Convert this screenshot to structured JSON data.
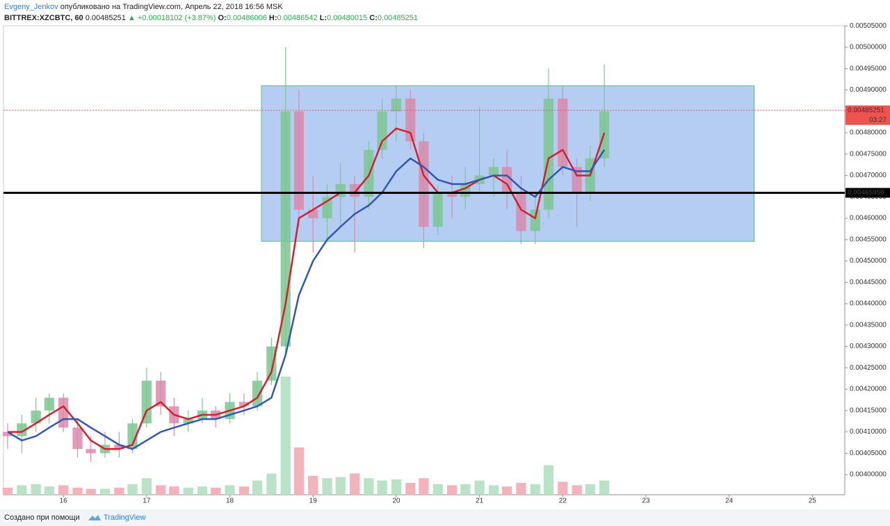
{
  "header": {
    "user": "Evgeny_Jenkov",
    "published": "опубликовано на TradingView.com, Апрель 22, 2018 16:56 MSK",
    "symbol": "BITTREX:XZCBTC, 60",
    "last": "0.00485251",
    "change": "▲ +0.00018102 (+3.87%)",
    "o_label": "O:",
    "o": "0.00486006",
    "h_label": "H:",
    "h": "0.00486542",
    "l_label": "L:",
    "l": "0.00480015",
    "c_label": "C:",
    "c": "0.00485251"
  },
  "footer": {
    "made_with": "Создано при помощи",
    "brand": "TradingView"
  },
  "chart_data": {
    "type": "candlestick",
    "x": [
      15.33,
      15.5,
      15.67,
      15.83,
      16.0,
      16.17,
      16.33,
      16.5,
      16.67,
      16.83,
      17.0,
      17.17,
      17.33,
      17.5,
      17.67,
      17.83,
      18.0,
      18.17,
      18.33,
      18.5,
      18.67,
      18.83,
      19.0,
      19.17,
      19.33,
      19.5,
      19.67,
      19.83,
      20.0,
      20.17,
      20.33,
      20.5,
      20.67,
      20.83,
      21.0,
      21.17,
      21.33,
      21.5,
      21.67,
      21.83,
      22.0,
      22.17,
      22.33,
      22.5
    ],
    "open": [
      0.0041,
      0.00409,
      0.00412,
      0.00415,
      0.00418,
      0.00411,
      0.00406,
      0.00405,
      0.00407,
      0.00406,
      0.00412,
      0.00422,
      0.00416,
      0.00412,
      0.00413,
      0.00415,
      0.00413,
      0.00417,
      0.00416,
      0.00422,
      0.0043,
      0.00485,
      0.00462,
      0.0046,
      0.00465,
      0.00468,
      0.00465,
      0.00476,
      0.00485,
      0.00488,
      0.00478,
      0.00458,
      0.00466,
      0.00465,
      0.00468,
      0.0047,
      0.00472,
      0.00466,
      0.00457,
      0.00462,
      0.00488,
      0.00472,
      0.00466,
      0.00474
    ],
    "high": [
      0.00412,
      0.00414,
      0.00418,
      0.00419,
      0.00419,
      0.00413,
      0.00409,
      0.0041,
      0.0041,
      0.00413,
      0.00425,
      0.00424,
      0.00418,
      0.00415,
      0.00418,
      0.00416,
      0.00419,
      0.00419,
      0.00424,
      0.00432,
      0.005,
      0.0049,
      0.0047,
      0.00468,
      0.00473,
      0.0047,
      0.00478,
      0.00488,
      0.00491,
      0.0049,
      0.0048,
      0.00468,
      0.0047,
      0.00472,
      0.00486,
      0.00474,
      0.00476,
      0.0047,
      0.00466,
      0.00495,
      0.00491,
      0.00474,
      0.00477,
      0.00496
    ],
    "low": [
      0.00406,
      0.00405,
      0.0041,
      0.00412,
      0.0041,
      0.00404,
      0.00403,
      0.00404,
      0.00404,
      0.00405,
      0.00411,
      0.00414,
      0.00409,
      0.0041,
      0.00412,
      0.00411,
      0.00412,
      0.00414,
      0.00415,
      0.00421,
      0.00428,
      0.00458,
      0.00452,
      0.00455,
      0.00458,
      0.00452,
      0.00462,
      0.00474,
      0.00478,
      0.00476,
      0.00453,
      0.00456,
      0.0046,
      0.00462,
      0.00466,
      0.00465,
      0.00462,
      0.00454,
      0.00454,
      0.0046,
      0.0047,
      0.00458,
      0.00464,
      0.00472
    ],
    "close": [
      0.00409,
      0.00412,
      0.00415,
      0.00418,
      0.00411,
      0.00406,
      0.00405,
      0.00407,
      0.00406,
      0.00412,
      0.00422,
      0.00416,
      0.00412,
      0.00413,
      0.00415,
      0.00413,
      0.00417,
      0.00416,
      0.00422,
      0.0043,
      0.00485,
      0.00462,
      0.0046,
      0.00465,
      0.00468,
      0.00465,
      0.00476,
      0.00485,
      0.00488,
      0.00478,
      0.00458,
      0.00466,
      0.00465,
      0.00468,
      0.0047,
      0.00472,
      0.00466,
      0.00457,
      0.00462,
      0.00488,
      0.00472,
      0.00466,
      0.00474,
      0.00485
    ],
    "volume": [
      6,
      8,
      9,
      7,
      8,
      6,
      5,
      5,
      6,
      9,
      14,
      8,
      7,
      6,
      7,
      6,
      8,
      7,
      12,
      18,
      100,
      40,
      16,
      14,
      15,
      18,
      14,
      12,
      13,
      10,
      14,
      9,
      8,
      9,
      12,
      8,
      7,
      10,
      9,
      25,
      11,
      8,
      9,
      12
    ],
    "up_color": "#7cc592",
    "down_color": "#d98aaa",
    "volume_up_color": "#b9e2c6",
    "volume_down_color": "#f3b3bb",
    "lines": [
      {
        "color": "#d2202e",
        "values": [
          0.0041,
          0.0041,
          0.00412,
          0.00414,
          0.00416,
          0.00412,
          0.00408,
          0.00406,
          0.00406,
          0.00407,
          0.00415,
          0.00417,
          0.00414,
          0.00413,
          0.00414,
          0.00414,
          0.00415,
          0.00416,
          0.00418,
          0.00424,
          0.0044,
          0.0046,
          0.00462,
          0.00464,
          0.00466,
          0.00466,
          0.0047,
          0.00478,
          0.00481,
          0.0048,
          0.0047,
          0.00466,
          0.00466,
          0.00467,
          0.00469,
          0.0047,
          0.00468,
          0.00462,
          0.0046,
          0.00474,
          0.00476,
          0.0047,
          0.0047,
          0.0048
        ]
      },
      {
        "color": "#3456ad",
        "values": [
          0.0041,
          0.00408,
          0.00409,
          0.00411,
          0.00413,
          0.00413,
          0.00411,
          0.00409,
          0.00407,
          0.00406,
          0.00408,
          0.0041,
          0.00411,
          0.00412,
          0.00413,
          0.00413,
          0.00414,
          0.00415,
          0.00416,
          0.00418,
          0.00428,
          0.00442,
          0.0045,
          0.00455,
          0.00458,
          0.00461,
          0.00463,
          0.00466,
          0.00471,
          0.00474,
          0.00472,
          0.00469,
          0.00468,
          0.00468,
          0.00469,
          0.0047,
          0.0047,
          0.00467,
          0.00465,
          0.00469,
          0.00472,
          0.00471,
          0.00471,
          0.00476
        ]
      }
    ],
    "rectangle": {
      "x": [
        18.38,
        24.3
      ],
      "y": [
        0.004546,
        0.00491
      ],
      "color": "#adc8f2"
    },
    "hline": {
      "value": 0.0046595,
      "label": "0.00465950",
      "color": "#000000"
    },
    "last_price": {
      "value": 0.00485251,
      "label": "0.00485251",
      "countdown": "03:27",
      "color": "#ef5350"
    },
    "xlim": [
      15.28,
      25.39
    ],
    "ylim": [
      0.003953,
      0.0050505
    ],
    "xticks": [
      16,
      17,
      18,
      19,
      20,
      21,
      22,
      23,
      24,
      25
    ],
    "yticks": [
      {
        "value": 0.004,
        "label": "0.00400000"
      },
      {
        "value": 0.00405,
        "label": "0.00405000"
      },
      {
        "value": 0.0041,
        "label": "0.00410000"
      },
      {
        "value": 0.00415,
        "label": "0.00415000"
      },
      {
        "value": 0.0042,
        "label": "0.00420000"
      },
      {
        "value": 0.00425,
        "label": "0.00425000"
      },
      {
        "value": 0.0043,
        "label": "0.00430000"
      },
      {
        "value": 0.00435,
        "label": "0.00435000"
      },
      {
        "value": 0.0044,
        "label": "0.00440000"
      },
      {
        "value": 0.00445,
        "label": "0.00445000"
      },
      {
        "value": 0.0045,
        "label": "0.00450000"
      },
      {
        "value": 0.00455,
        "label": "0.00455000"
      },
      {
        "value": 0.0046,
        "label": "0.00460000"
      },
      {
        "value": 0.00465,
        "label": "0.00465000"
      },
      {
        "value": 0.0047,
        "label": "0.00470000"
      },
      {
        "value": 0.00475,
        "label": "0.00475000"
      },
      {
        "value": 0.0048,
        "label": "0.00480000"
      },
      {
        "value": 0.00485,
        "label": "0.00485000"
      },
      {
        "value": 0.0049,
        "label": "0.00490000"
      },
      {
        "value": 0.00495,
        "label": "0.00495000"
      },
      {
        "value": 0.005,
        "label": "0.00500000"
      },
      {
        "value": 0.00505,
        "label": "0.00505000"
      }
    ]
  }
}
